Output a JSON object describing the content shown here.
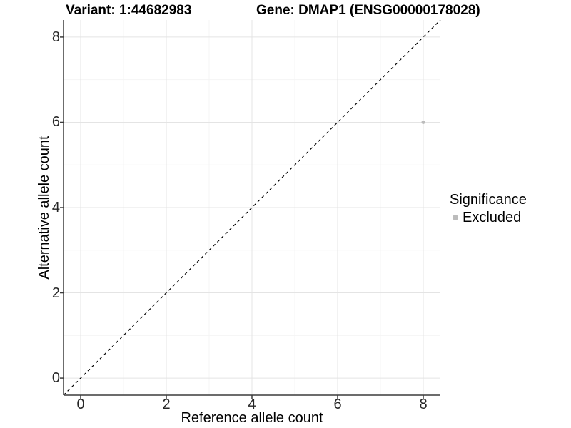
{
  "titles": {
    "variant": "Variant: 1:44682983",
    "gene": "Gene: DMAP1 (ENSG00000178028)"
  },
  "colors": {
    "grid_major": "#e4e4e4",
    "grid_minor": "#f4f4f4",
    "axis_line": "#3c3c3c",
    "tick_mark": "#3c3c3c",
    "identity_line": "#000000",
    "point": "#bcbcbc",
    "background": "#ffffff"
  },
  "chart_data": {
    "type": "scatter",
    "title_left": "Variant: 1:44682983",
    "title_right": "Gene: DMAP1 (ENSG00000178028)",
    "xlabel": "Reference allele count",
    "ylabel": "Alternative allele count",
    "xlim": [
      -0.4,
      8.4
    ],
    "ylim": [
      -0.4,
      8.4
    ],
    "xticks": [
      0,
      2,
      4,
      6,
      8
    ],
    "yticks": [
      0,
      2,
      4,
      6,
      8
    ],
    "xticks_minor": [
      1,
      3,
      5,
      7
    ],
    "yticks_minor": [
      1,
      3,
      5,
      7
    ],
    "grid": true,
    "points": [
      {
        "x": 8,
        "y": 6,
        "series": "Excluded",
        "color": "#bcbcbc",
        "radius": 2.5
      }
    ],
    "identity_line": {
      "slope": 1,
      "intercept": 0,
      "style": "dashed"
    },
    "legend": {
      "position": "right",
      "title": "Significance",
      "entries": [
        {
          "label": "Excluded",
          "color": "#bcbcbc"
        }
      ]
    }
  }
}
